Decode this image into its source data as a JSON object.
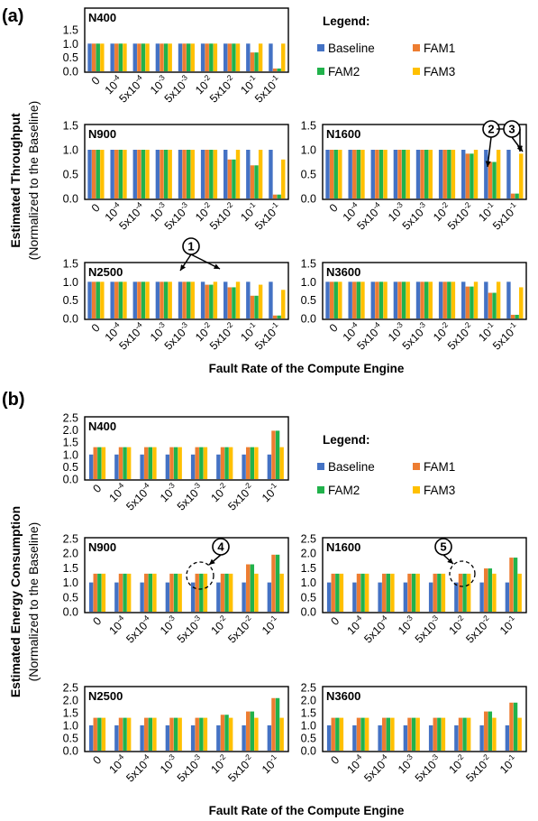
{
  "figure": {
    "x_axis_label": "Fault Rate of the Compute Engine",
    "legend_title": "Legend:",
    "series_names": [
      "Baseline",
      "FAM1",
      "FAM2",
      "FAM3"
    ],
    "series_colors": [
      "#4472C4",
      "#ED7D31",
      "#21B24B",
      "#FFC000"
    ]
  },
  "sections": [
    {
      "label": "(a)",
      "y_label_line1": "Estimated Throughput",
      "y_label_line2": "(Normalized to the Baseline)",
      "x_axis_label": "Fault Rate of the Compute Engine"
    },
    {
      "label": "(b)",
      "y_label_line1": "Estimated Energy Consumption",
      "y_label_line2": "(Normalized to the Baseline)",
      "x_axis_label": "Fault Rate of the Compute Engine"
    }
  ],
  "annotations": [
    "1",
    "2",
    "3",
    "4",
    "5"
  ],
  "chart_data": [
    {
      "type": "bar",
      "section": "a",
      "title": "N400",
      "categories": [
        "0",
        "10^-4",
        "5x10^-4",
        "10^-3",
        "5x10^-3",
        "10^-2",
        "5x10^-2",
        "10^-1",
        "5x10^-1"
      ],
      "ylim": [
        0,
        1.5
      ],
      "yticks": [
        "0.0",
        "0.5",
        "1.0",
        "1.5"
      ],
      "series": [
        {
          "name": "Baseline",
          "values": [
            1,
            1,
            1,
            1,
            1,
            1,
            1,
            1,
            1
          ]
        },
        {
          "name": "FAM1",
          "values": [
            1,
            1,
            1,
            1,
            1,
            1,
            1,
            0.68,
            0.1
          ]
        },
        {
          "name": "FAM2",
          "values": [
            1,
            1,
            1,
            1,
            1,
            1,
            1,
            0.68,
            0.1
          ]
        },
        {
          "name": "FAM3",
          "values": [
            1,
            1,
            1,
            1,
            1,
            1,
            1,
            1,
            1
          ]
        }
      ]
    },
    {
      "type": "bar",
      "section": "a",
      "title": "N900",
      "categories": [
        "0",
        "10^-4",
        "5x10^-4",
        "10^-3",
        "5x10^-3",
        "10^-2",
        "5x10^-2",
        "10^-1",
        "5x10^-1"
      ],
      "ylim": [
        0,
        1.5
      ],
      "yticks": [
        "0.0",
        "0.5",
        "1.0",
        "1.5"
      ],
      "series": [
        {
          "name": "Baseline",
          "values": [
            1,
            1,
            1,
            1,
            1,
            1,
            1,
            1,
            1
          ]
        },
        {
          "name": "FAM1",
          "values": [
            1,
            1,
            1,
            1,
            1,
            1,
            0.8,
            0.68,
            0.08
          ]
        },
        {
          "name": "FAM2",
          "values": [
            1,
            1,
            1,
            1,
            1,
            1,
            0.8,
            0.68,
            0.08
          ]
        },
        {
          "name": "FAM3",
          "values": [
            1,
            1,
            1,
            1,
            1,
            1,
            1,
            1,
            0.8
          ]
        }
      ]
    },
    {
      "type": "bar",
      "section": "a",
      "title": "N1600",
      "categories": [
        "0",
        "10^-4",
        "5x10^-4",
        "10^-3",
        "5x10^-3",
        "10^-2",
        "5x10^-2",
        "10^-1",
        "5x10^-1"
      ],
      "ylim": [
        0,
        1.5
      ],
      "yticks": [
        "0.0",
        "0.5",
        "1.0",
        "1.5"
      ],
      "series": [
        {
          "name": "Baseline",
          "values": [
            1,
            1,
            1,
            1,
            1,
            1,
            1,
            1,
            1
          ]
        },
        {
          "name": "FAM1",
          "values": [
            1,
            1,
            1,
            1,
            1,
            1,
            0.92,
            0.75,
            0.1
          ]
        },
        {
          "name": "FAM2",
          "values": [
            1,
            1,
            1,
            1,
            1,
            1,
            0.92,
            0.75,
            0.1
          ]
        },
        {
          "name": "FAM3",
          "values": [
            1,
            1,
            1,
            1,
            1,
            1,
            1,
            1,
            0.92
          ]
        }
      ]
    },
    {
      "type": "bar",
      "section": "a",
      "title": "N2500",
      "categories": [
        "0",
        "10^-4",
        "5x10^-4",
        "10^-3",
        "5x10^-3",
        "10^-2",
        "5x10^-2",
        "10^-1",
        "5x10^-1"
      ],
      "ylim": [
        0,
        1.5
      ],
      "yticks": [
        "0.0",
        "0.5",
        "1.0",
        "1.5"
      ],
      "series": [
        {
          "name": "Baseline",
          "values": [
            1,
            1,
            1,
            1,
            1,
            1,
            1,
            1,
            1
          ]
        },
        {
          "name": "FAM1",
          "values": [
            1,
            1,
            1,
            1,
            1,
            0.92,
            0.85,
            0.62,
            0.08
          ]
        },
        {
          "name": "FAM2",
          "values": [
            1,
            1,
            1,
            1,
            1,
            0.92,
            0.85,
            0.62,
            0.08
          ]
        },
        {
          "name": "FAM3",
          "values": [
            1,
            1,
            1,
            1,
            1,
            1,
            1,
            0.92,
            0.78
          ]
        }
      ]
    },
    {
      "type": "bar",
      "section": "a",
      "title": "N3600",
      "categories": [
        "0",
        "10^-4",
        "5x10^-4",
        "10^-3",
        "5x10^-3",
        "10^-2",
        "5x10^-2",
        "10^-1",
        "5x10^-1"
      ],
      "ylim": [
        0,
        1.5
      ],
      "yticks": [
        "0.0",
        "0.5",
        "1.0",
        "1.5"
      ],
      "series": [
        {
          "name": "Baseline",
          "values": [
            1,
            1,
            1,
            1,
            1,
            1,
            1,
            1,
            1
          ]
        },
        {
          "name": "FAM1",
          "values": [
            1,
            1,
            1,
            1,
            1,
            1,
            0.87,
            0.7,
            0.1
          ]
        },
        {
          "name": "FAM2",
          "values": [
            1,
            1,
            1,
            1,
            1,
            1,
            0.87,
            0.7,
            0.1
          ]
        },
        {
          "name": "FAM3",
          "values": [
            1,
            1,
            1,
            1,
            1,
            1,
            1,
            1,
            0.85
          ]
        }
      ]
    },
    {
      "type": "bar",
      "section": "b",
      "title": "N400",
      "categories": [
        "0",
        "10^-4",
        "5x10^-4",
        "10^-3",
        "5x10^-3",
        "10^-2",
        "5x10^-2",
        "10^-1"
      ],
      "ylim": [
        0,
        2.5
      ],
      "yticks": [
        "0.0",
        "0.5",
        "1.0",
        "1.5",
        "2.0",
        "2.5"
      ],
      "series": [
        {
          "name": "Baseline",
          "values": [
            1,
            1,
            1,
            1,
            1,
            1,
            1,
            1
          ]
        },
        {
          "name": "FAM1",
          "values": [
            1.3,
            1.3,
            1.3,
            1.3,
            1.3,
            1.3,
            1.3,
            1.97
          ]
        },
        {
          "name": "FAM2",
          "values": [
            1.3,
            1.3,
            1.3,
            1.3,
            1.3,
            1.3,
            1.3,
            1.97
          ]
        },
        {
          "name": "FAM3",
          "values": [
            1.3,
            1.3,
            1.3,
            1.3,
            1.3,
            1.3,
            1.3,
            1.3
          ]
        }
      ]
    },
    {
      "type": "bar",
      "section": "b",
      "title": "N900",
      "categories": [
        "0",
        "10^-4",
        "5x10^-4",
        "10^-3",
        "5x10^-3",
        "10^-2",
        "5x10^-2",
        "10^-1"
      ],
      "ylim": [
        0,
        2.5
      ],
      "yticks": [
        "0.0",
        "0.5",
        "1.0",
        "1.5",
        "2.0",
        "2.5"
      ],
      "series": [
        {
          "name": "Baseline",
          "values": [
            1,
            1,
            1,
            1,
            1,
            1,
            1,
            1
          ]
        },
        {
          "name": "FAM1",
          "values": [
            1.3,
            1.3,
            1.3,
            1.3,
            1.3,
            1.3,
            1.62,
            1.95
          ]
        },
        {
          "name": "FAM2",
          "values": [
            1.3,
            1.3,
            1.3,
            1.3,
            1.3,
            1.3,
            1.62,
            1.95
          ]
        },
        {
          "name": "FAM3",
          "values": [
            1.3,
            1.3,
            1.3,
            1.3,
            1.3,
            1.3,
            1.3,
            1.3
          ]
        }
      ]
    },
    {
      "type": "bar",
      "section": "b",
      "title": "N1600",
      "categories": [
        "0",
        "10^-4",
        "5x10^-4",
        "10^-3",
        "5x10^-3",
        "10^-2",
        "5x10^-2",
        "10^-1"
      ],
      "ylim": [
        0,
        2.5
      ],
      "yticks": [
        "0.0",
        "0.5",
        "1.0",
        "1.5",
        "2.0",
        "2.5"
      ],
      "series": [
        {
          "name": "Baseline",
          "values": [
            1,
            1,
            1,
            1,
            1,
            1,
            1,
            1
          ]
        },
        {
          "name": "FAM1",
          "values": [
            1.3,
            1.3,
            1.3,
            1.3,
            1.3,
            1.3,
            1.48,
            1.85
          ]
        },
        {
          "name": "FAM2",
          "values": [
            1.3,
            1.3,
            1.3,
            1.3,
            1.3,
            1.3,
            1.48,
            1.85
          ]
        },
        {
          "name": "FAM3",
          "values": [
            1.3,
            1.3,
            1.3,
            1.3,
            1.3,
            1.3,
            1.3,
            1.3
          ]
        }
      ]
    },
    {
      "type": "bar",
      "section": "b",
      "title": "N2500",
      "categories": [
        "0",
        "10^-4",
        "5x10^-4",
        "10^-3",
        "5x10^-3",
        "10^-2",
        "5x10^-2",
        "10^-1"
      ],
      "ylim": [
        0,
        2.5
      ],
      "yticks": [
        "0.0",
        "0.5",
        "1.0",
        "1.5",
        "2.0",
        "2.5"
      ],
      "series": [
        {
          "name": "Baseline",
          "values": [
            1,
            1,
            1,
            1,
            1,
            1,
            1,
            1
          ]
        },
        {
          "name": "FAM1",
          "values": [
            1.3,
            1.3,
            1.3,
            1.3,
            1.3,
            1.42,
            1.55,
            2.08
          ]
        },
        {
          "name": "FAM2",
          "values": [
            1.3,
            1.3,
            1.3,
            1.3,
            1.3,
            1.42,
            1.55,
            2.08
          ]
        },
        {
          "name": "FAM3",
          "values": [
            1.3,
            1.3,
            1.3,
            1.3,
            1.3,
            1.3,
            1.3,
            1.3
          ]
        }
      ]
    },
    {
      "type": "bar",
      "section": "b",
      "title": "N3600",
      "categories": [
        "0",
        "10^-4",
        "5x10^-4",
        "10^-3",
        "5x10^-3",
        "10^-2",
        "5x10^-2",
        "10^-1"
      ],
      "ylim": [
        0,
        2.5
      ],
      "yticks": [
        "0.0",
        "0.5",
        "1.0",
        "1.5",
        "2.0",
        "2.5"
      ],
      "series": [
        {
          "name": "Baseline",
          "values": [
            1,
            1,
            1,
            1,
            1,
            1,
            1,
            1
          ]
        },
        {
          "name": "FAM1",
          "values": [
            1.3,
            1.3,
            1.3,
            1.3,
            1.3,
            1.3,
            1.55,
            1.9
          ]
        },
        {
          "name": "FAM2",
          "values": [
            1.3,
            1.3,
            1.3,
            1.3,
            1.3,
            1.3,
            1.55,
            1.9
          ]
        },
        {
          "name": "FAM3",
          "values": [
            1.3,
            1.3,
            1.3,
            1.3,
            1.3,
            1.3,
            1.3,
            1.3
          ]
        }
      ]
    }
  ]
}
